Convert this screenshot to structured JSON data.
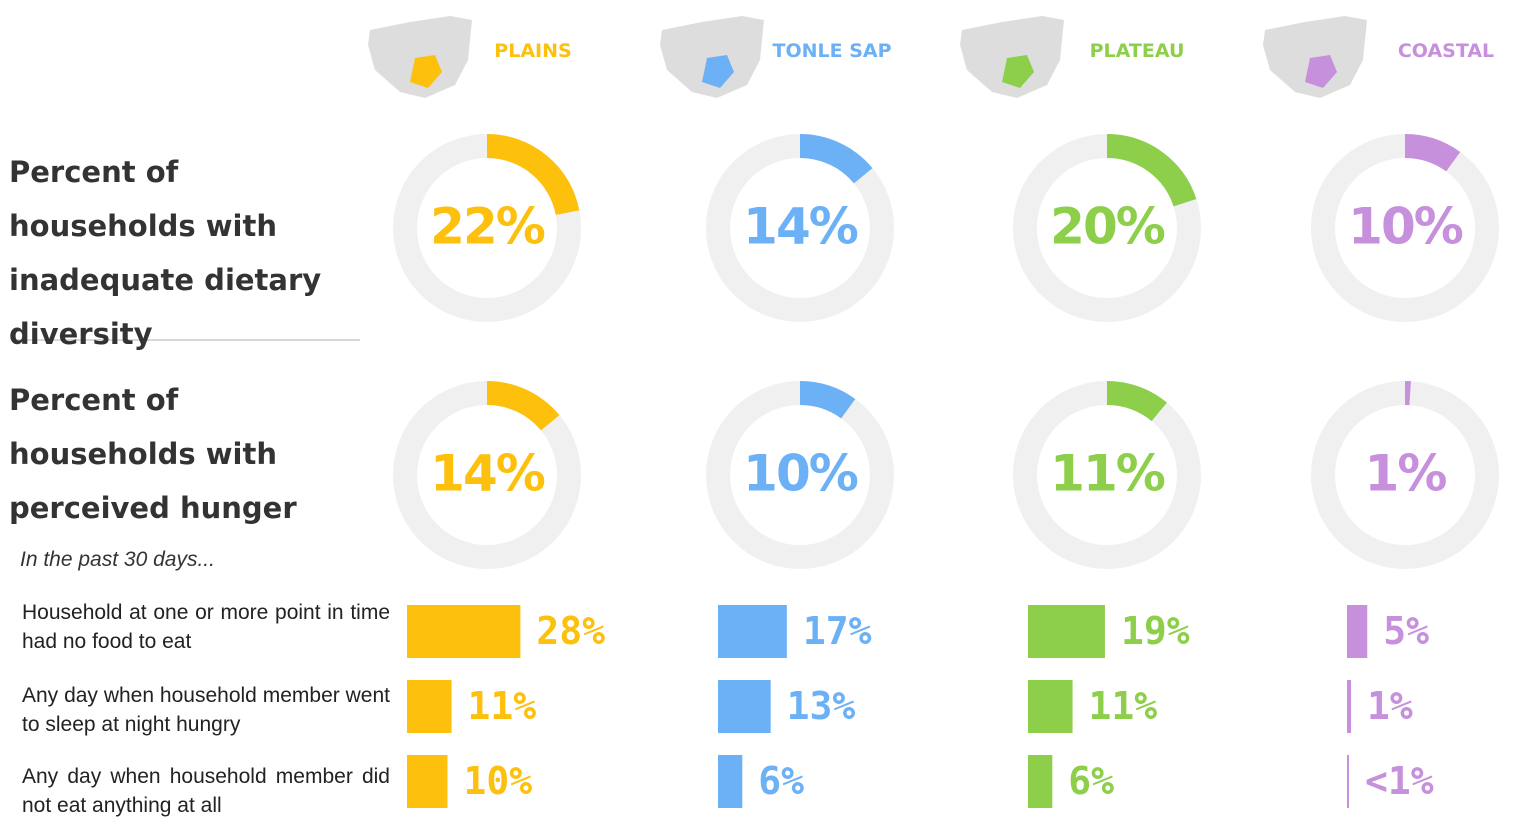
{
  "chart_data": {
    "type": "donut-bar-panel",
    "categories": [
      "PLAINS",
      "TONLE SAP",
      "PLATEAU",
      "COASTAL"
    ],
    "colors": [
      "#fcc00d",
      "#6cb0f6",
      "#8dcf4a",
      "#c690dc"
    ],
    "charts": [
      {
        "type": "donut",
        "title": "Percent of households with inadequate dietary diversity",
        "values": [
          22,
          14,
          20,
          10
        ],
        "value_labels": [
          "22%",
          "14%",
          "20%",
          "10%"
        ]
      },
      {
        "type": "donut",
        "title": "Percent of households with perceived hunger",
        "subtitle": "In the past 30 days...",
        "values": [
          14,
          10,
          11,
          1
        ],
        "value_labels": [
          "14%",
          "10%",
          "11%",
          "1%"
        ]
      },
      {
        "type": "bar",
        "categories": [
          "Household at one or more point in time had no food to eat",
          "Any day when household member went to sleep at night hungry",
          "Any day when household member did not eat anything at all"
        ],
        "series": [
          {
            "values": [
              28,
              11,
              10
            ],
            "value_labels": [
              "28%",
              "11%",
              "10%"
            ]
          },
          {
            "values": [
              17,
              13,
              6
            ],
            "value_labels": [
              "17%",
              "13%",
              "6%"
            ]
          },
          {
            "values": [
              19,
              11,
              6
            ],
            "value_labels": [
              "19%",
              "11%",
              "6%"
            ]
          },
          {
            "values": [
              5,
              1,
              0.5
            ],
            "value_labels": [
              "5%",
              "1%",
              "<1%"
            ]
          }
        ]
      }
    ]
  }
}
